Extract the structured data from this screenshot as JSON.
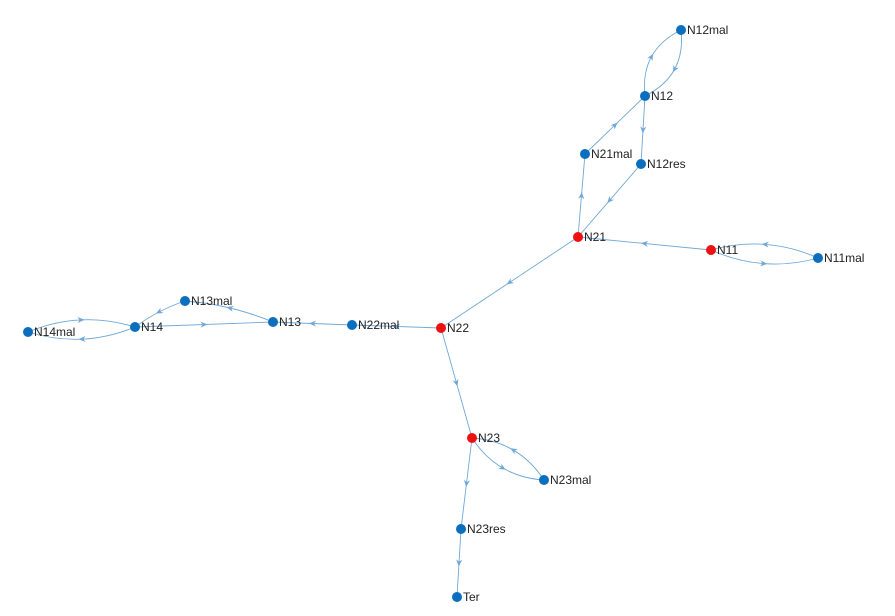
{
  "colors": {
    "edge": "#6fa8d6",
    "node_default": "#0b6fbd",
    "node_highlight": "#ee1111"
  },
  "nodes": [
    {
      "id": "N12mal",
      "label": "N12mal",
      "highlight": false
    },
    {
      "id": "N12",
      "label": "N12",
      "highlight": false
    },
    {
      "id": "N21mal",
      "label": "N21mal",
      "highlight": false
    },
    {
      "id": "N12res",
      "label": "N12res",
      "highlight": false
    },
    {
      "id": "N21",
      "label": "N21",
      "highlight": true
    },
    {
      "id": "N11",
      "label": "N11",
      "highlight": true
    },
    {
      "id": "N11mal",
      "label": "N11mal",
      "highlight": false
    },
    {
      "id": "N13mal",
      "label": "N13mal",
      "highlight": false
    },
    {
      "id": "N14mal",
      "label": "N14mal",
      "highlight": false
    },
    {
      "id": "N14",
      "label": "N14",
      "highlight": false
    },
    {
      "id": "N13",
      "label": "N13",
      "highlight": false
    },
    {
      "id": "N22mal",
      "label": "N22mal",
      "highlight": false
    },
    {
      "id": "N22",
      "label": "N22",
      "highlight": true
    },
    {
      "id": "N23",
      "label": "N23",
      "highlight": true
    },
    {
      "id": "N23mal",
      "label": "N23mal",
      "highlight": false
    },
    {
      "id": "N23res",
      "label": "N23res",
      "highlight": false
    },
    {
      "id": "Ter",
      "label": "Ter",
      "highlight": false
    }
  ],
  "edges": [
    {
      "from": "N12",
      "to": "N12mal"
    },
    {
      "from": "N12mal",
      "to": "N12"
    },
    {
      "from": "N12",
      "to": "N12res"
    },
    {
      "from": "N21mal",
      "to": "N12"
    },
    {
      "from": "N21",
      "to": "N21mal"
    },
    {
      "from": "N12res",
      "to": "N21"
    },
    {
      "from": "N11",
      "to": "N21"
    },
    {
      "from": "N11",
      "to": "N11mal"
    },
    {
      "from": "N11mal",
      "to": "N11"
    },
    {
      "from": "N21",
      "to": "N22"
    },
    {
      "from": "N22",
      "to": "N22mal"
    },
    {
      "from": "N22mal",
      "to": "N13"
    },
    {
      "from": "N13",
      "to": "N13mal"
    },
    {
      "from": "N13mal",
      "to": "N14"
    },
    {
      "from": "N14",
      "to": "N13"
    },
    {
      "from": "N14",
      "to": "N14mal"
    },
    {
      "from": "N14mal",
      "to": "N14"
    },
    {
      "from": "N22",
      "to": "N23"
    },
    {
      "from": "N23",
      "to": "N23mal"
    },
    {
      "from": "N23mal",
      "to": "N23"
    },
    {
      "from": "N23",
      "to": "N23res"
    },
    {
      "from": "N23res",
      "to": "Ter"
    }
  ]
}
